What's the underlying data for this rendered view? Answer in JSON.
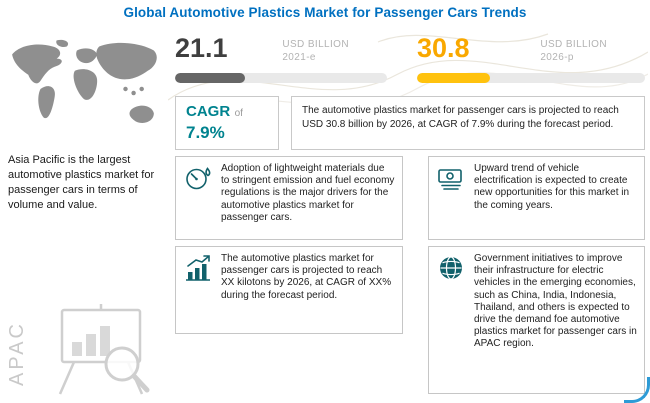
{
  "title": "Global Automotive Plastics Market for Passenger Cars Trends",
  "colors": {
    "title_blue": "#0070c0",
    "teal": "#00838f",
    "amber": "#f9a800",
    "dark_gray": "#3f3f3f",
    "bar_track": "#e9e9e9"
  },
  "sidebar": {
    "description": "Asia Pacific is the largest automotive plastics market for passenger cars in terms of volume and value.",
    "watermark": "APAC",
    "icons": [
      "world-map-graphic",
      "chart-magnifier-illustration"
    ]
  },
  "stats": [
    {
      "value": "21.1",
      "unit": "USD BILLION",
      "year": "2021-e",
      "value_color": "#3f3f3f",
      "fill_color": "#666666",
      "progress_pct": 33
    },
    {
      "value": "30.8",
      "unit": "USD BILLION",
      "year": "2026-p",
      "value_color": "#f9a800",
      "fill_color": "#ffc20e",
      "progress_pct": 32
    }
  ],
  "cagr": {
    "label": "CAGR",
    "of_word": "of",
    "value": "7.9%",
    "description": "The automotive plastics market for passenger cars is projected to reach USD 30.8 billion by 2026, at CAGR of 7.9% during the forecast period."
  },
  "boxes": [
    {
      "icon": "fuel-economy-gauge-icon",
      "text": "Adoption of lightweight materials due to stringent emission and fuel economy regulations is the major drivers for the automotive plastics market for passenger cars."
    },
    {
      "icon": "banknotes-icon",
      "text": "Upward trend of vehicle electrification is expected to create new opportunities for this market in the coming years."
    },
    {
      "icon": "growth-bar-chart-icon",
      "text": "The automotive plastics market for passenger cars is projected to reach XX kilotons by 2026, at CAGR of XX% during the forecast period."
    },
    {
      "icon": "globe-icon",
      "text": "Government initiatives to improve their infrastructure for electric vehicles in the emerging economies, such as China, India, Indonesia, Thailand, and others is expected to drive the demand foe automotive plastics market for passenger cars in APAC region."
    }
  ],
  "chart_data": {
    "type": "bar",
    "title": "Global Automotive Plastics Market for Passenger Cars",
    "categories": [
      "2021-e",
      "2026-p"
    ],
    "values": [
      21.1,
      30.8
    ],
    "ylabel": "USD Billion",
    "annotations": [
      "CAGR of 7.9% (2021-2026)",
      "2026 projection reached at CAGR 7.9%"
    ]
  }
}
